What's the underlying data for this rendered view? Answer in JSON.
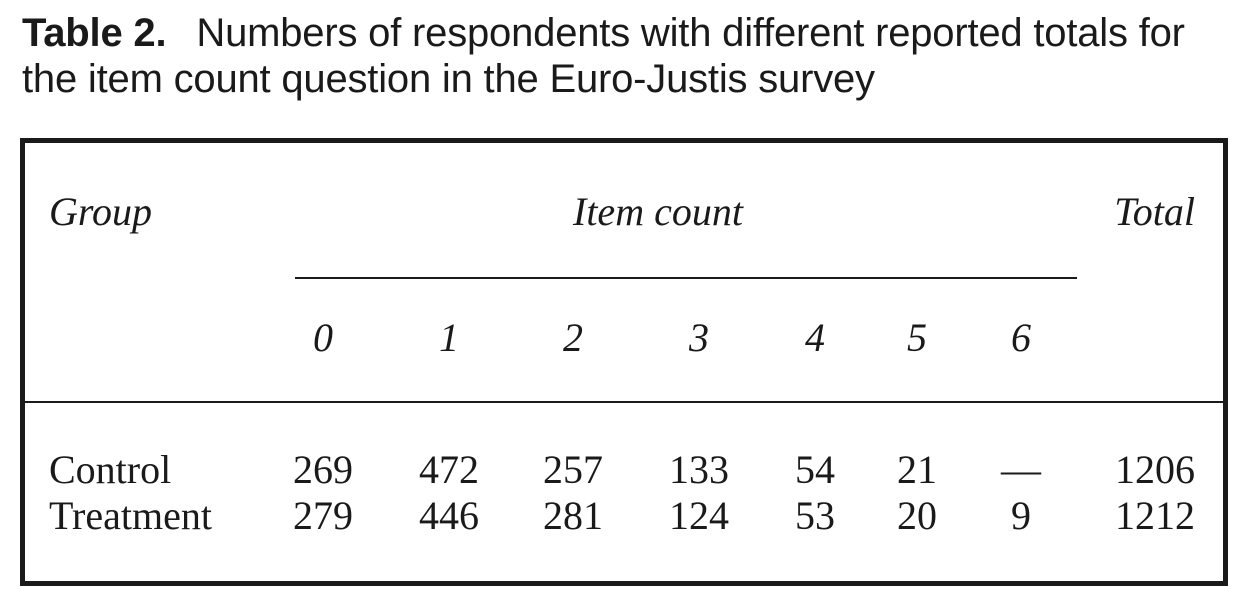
{
  "caption": {
    "label": "Table 2.",
    "text": "Numbers of respondents with different reported totals for the item count question in the Euro-Justis survey"
  },
  "table": {
    "header": {
      "group": "Group",
      "spanner": "Item count",
      "total": "Total",
      "counts": [
        "0",
        "1",
        "2",
        "3",
        "4",
        "5",
        "6"
      ]
    },
    "rows": [
      {
        "group": "Control",
        "values": [
          "269",
          "472",
          "257",
          "133",
          "54",
          "21",
          "—"
        ],
        "total": "1206"
      },
      {
        "group": "Treatment",
        "values": [
          "279",
          "446",
          "281",
          "124",
          "53",
          "20",
          "9"
        ],
        "total": "1212"
      }
    ]
  }
}
